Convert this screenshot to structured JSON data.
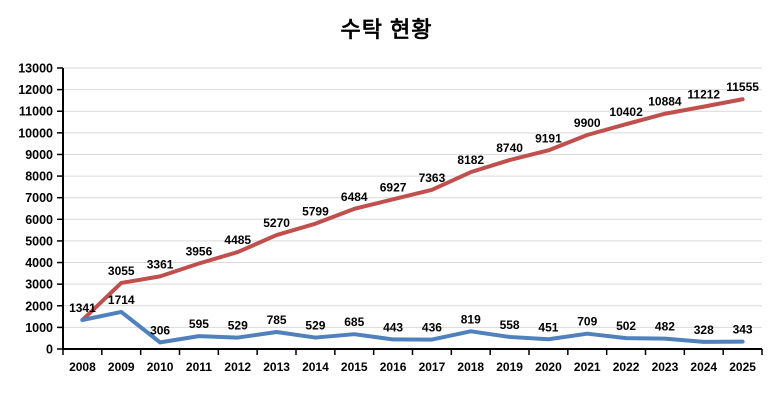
{
  "chart_data": {
    "type": "line",
    "title": "수탁 현황",
    "categories": [
      "2008",
      "2009",
      "2010",
      "2011",
      "2012",
      "2013",
      "2014",
      "2015",
      "2016",
      "2017",
      "2018",
      "2019",
      "2020",
      "2021",
      "2022",
      "2023",
      "2024",
      "2025"
    ],
    "series": [
      {
        "name": "red-line",
        "color": "#C0504D",
        "values": [
          1341,
          3055,
          3361,
          3956,
          4485,
          5270,
          5799,
          6484,
          6927,
          7363,
          8182,
          8740,
          9191,
          9900,
          10402,
          10884,
          11212,
          11555
        ],
        "labels": [
          "1341",
          "3055",
          "3361",
          "3956",
          "4485",
          "5270",
          "5799",
          "6484",
          "6927",
          "7363",
          "8182",
          "8740",
          "9191",
          "9900",
          "10402",
          "10884",
          "11212",
          "11555"
        ]
      },
      {
        "name": "blue-line",
        "color": "#4F81BD",
        "values": [
          1341,
          1714,
          306,
          595,
          529,
          785,
          529,
          685,
          443,
          436,
          819,
          558,
          451,
          709,
          502,
          482,
          328,
          343
        ],
        "labels": [
          "",
          "1714",
          "306",
          "595",
          "529",
          "785",
          "529",
          "685",
          "443",
          "436",
          "819",
          "558",
          "451",
          "709",
          "502",
          "482",
          "328",
          "343"
        ]
      }
    ],
    "xlabel": "",
    "ylabel": "",
    "ylim": [
      0,
      13000
    ],
    "ytick_step": 1000,
    "yaxis_tick_labels": [
      "0",
      "1000",
      "2000",
      "3000",
      "4000",
      "5000",
      "6000",
      "7000",
      "8000",
      "9000",
      "10000",
      "11000",
      "12000",
      "13000"
    ],
    "grid": "horizontal",
    "gridline_color": "#D9D9D9",
    "axis_color": "#000000",
    "label_color": "#000000",
    "background": "#FFFFFF",
    "legend": "none"
  }
}
